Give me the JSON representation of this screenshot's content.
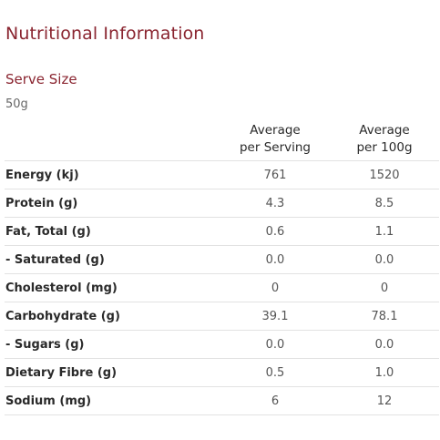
{
  "title": "Nutritional Information",
  "serve_size": {
    "label": "Serve Size",
    "value": "50g"
  },
  "table": {
    "headers": {
      "per_serving_line1": "Average",
      "per_serving_line2": "per Serving",
      "per_100g_line1": "Average",
      "per_100g_line2": "per 100g"
    },
    "rows": [
      {
        "name": "Energy (kj)",
        "per_serving": "761",
        "per_100g": "1520"
      },
      {
        "name": "Protein (g)",
        "per_serving": "4.3",
        "per_100g": "8.5"
      },
      {
        "name": "Fat, Total (g)",
        "per_serving": "0.6",
        "per_100g": "1.1"
      },
      {
        "name": "- Saturated (g)",
        "per_serving": "0.0",
        "per_100g": "0.0"
      },
      {
        "name": "Cholesterol (mg)",
        "per_serving": "0",
        "per_100g": "0"
      },
      {
        "name": "Carbohydrate (g)",
        "per_serving": "39.1",
        "per_100g": "78.1"
      },
      {
        "name": "- Sugars (g)",
        "per_serving": "0.0",
        "per_100g": "0.0"
      },
      {
        "name": "Dietary Fibre (g)",
        "per_serving": "0.5",
        "per_100g": "1.0"
      },
      {
        "name": "Sodium (mg)",
        "per_serving": "6",
        "per_100g": "12"
      }
    ]
  },
  "colors": {
    "heading": "#8a2530",
    "text": "#2a2a2a",
    "value_text": "#555555",
    "divider": "#e2e2e2"
  }
}
